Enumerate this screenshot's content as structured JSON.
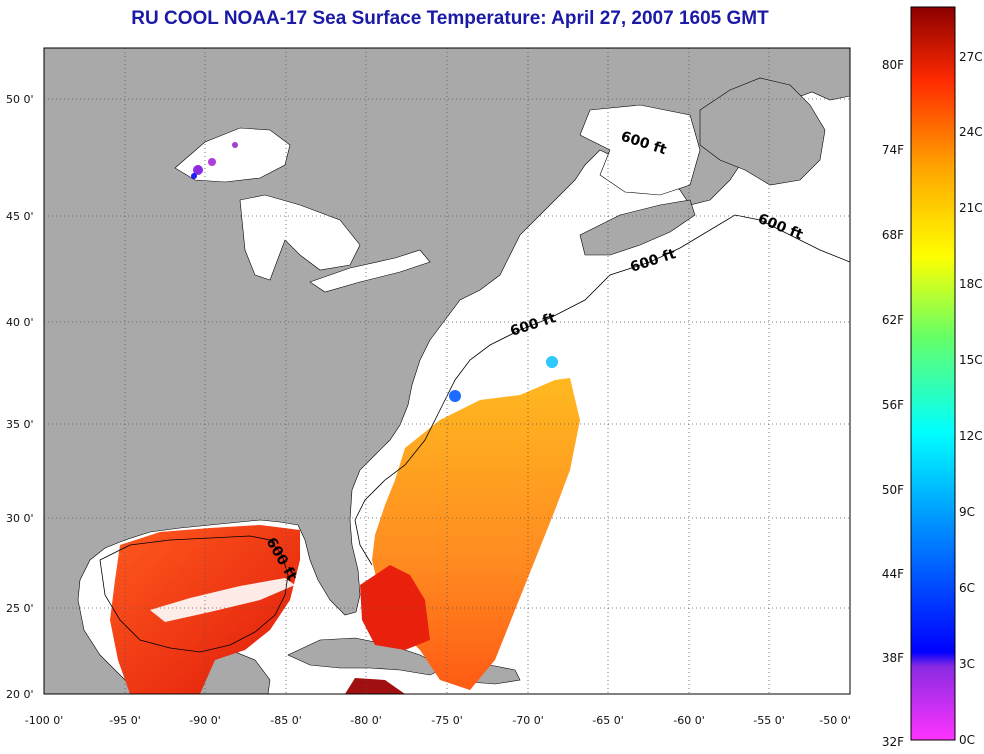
{
  "title": "RU COOL  NOAA-17  Sea Surface Temperature:  April 27, 2007 1605 GMT",
  "map": {
    "lon_ticks": [
      "-100 0'",
      "-95 0'",
      "-90 0'",
      "-85 0'",
      "-80 0'",
      "-75 0'",
      "-70 0'",
      "-65 0'",
      "-60 0'",
      "-55 0'",
      "-50 0'"
    ],
    "lat_ticks": [
      "50 0'",
      "45 0'",
      "40 0'",
      "35 0'",
      "30 0'",
      "25 0'",
      "20 0'"
    ],
    "contour_label": "600 ft",
    "colors": {
      "land": "#a9a9a9",
      "water": "#ffffff",
      "grid": "#555555"
    }
  },
  "colorbar": {
    "fahrenheit_labels": [
      "80F",
      "74F",
      "68F",
      "62F",
      "56F",
      "50F",
      "44F",
      "38F",
      "32F"
    ],
    "celsius_labels": [
      "27C",
      "24C",
      "21C",
      "18C",
      "15C",
      "12C",
      "9C",
      "6C",
      "3C",
      "0C"
    ]
  }
}
